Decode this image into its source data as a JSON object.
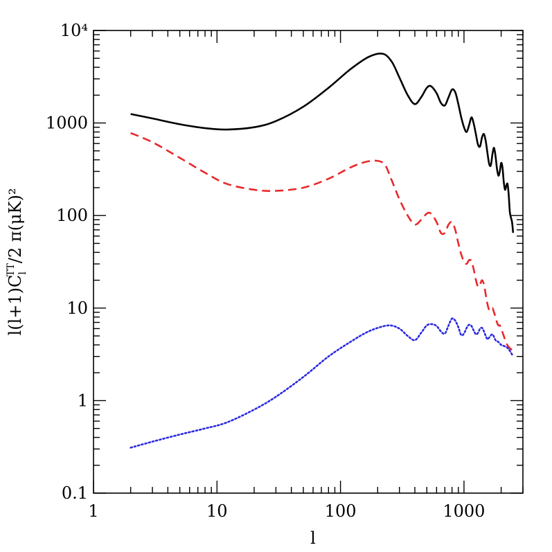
{
  "chart_data": {
    "type": "line",
    "title": "",
    "xlabel": "l",
    "ylabel": "l(l+1)C_l^TT/2 π(μK)²",
    "ylabel_parts": {
      "main": "l(l+1)C",
      "sub": "l",
      "sup": "TT",
      "tail": "/2 π(μK)²"
    },
    "xscale": "log",
    "yscale": "log",
    "xlim": [
      1,
      3000
    ],
    "ylim": [
      0.1,
      10000
    ],
    "xticks": [
      {
        "value": 1,
        "label": "1"
      },
      {
        "value": 10,
        "label": "10"
      },
      {
        "value": 100,
        "label": "100"
      },
      {
        "value": 1000,
        "label": "1000"
      }
    ],
    "yticks": [
      {
        "value": 0.1,
        "label": "0.1"
      },
      {
        "value": 1,
        "label": "1"
      },
      {
        "value": 10,
        "label": "10"
      },
      {
        "value": 100,
        "label": "100"
      },
      {
        "value": 1000,
        "label": "1000"
      },
      {
        "value": 10000,
        "label": "10⁴"
      }
    ],
    "grid": false,
    "legend": "none",
    "series": [
      {
        "style": "solid",
        "color": "#000000",
        "x": [
          2,
          3,
          5,
          8,
          12,
          20,
          30,
          50,
          80,
          120,
          170,
          220,
          260,
          300,
          350,
          400,
          450,
          500,
          540,
          600,
          650,
          700,
          750,
          800,
          850,
          900,
          950,
          1000,
          1050,
          1100,
          1150,
          1200,
          1250,
          1300,
          1350,
          1400,
          1450,
          1500,
          1550,
          1600,
          1650,
          1700,
          1750,
          1800,
          1850,
          1900,
          1950,
          2000,
          2050,
          2100,
          2150,
          2200,
          2250,
          2300,
          2350,
          2400,
          2450,
          2500
        ],
        "y": [
          1250,
          1120,
          970,
          880,
          850,
          900,
          1050,
          1500,
          2400,
          3800,
          5200,
          5600,
          4600,
          3100,
          2000,
          1600,
          1900,
          2400,
          2500,
          2100,
          1650,
          1550,
          1900,
          2300,
          2150,
          1600,
          1150,
          900,
          800,
          950,
          1150,
          980,
          750,
          580,
          560,
          700,
          760,
          640,
          470,
          360,
          350,
          460,
          540,
          440,
          320,
          270,
          300,
          370,
          330,
          230,
          190,
          210,
          220,
          170,
          110,
          95,
          85,
          65
        ]
      },
      {
        "style": "dashed",
        "color": "#e8282b",
        "x": [
          2,
          3,
          5,
          8,
          12,
          20,
          30,
          50,
          80,
          120,
          160,
          200,
          230,
          260,
          300,
          350,
          400,
          450,
          500,
          540,
          600,
          650,
          700,
          750,
          800,
          850,
          900,
          950,
          1000,
          1050,
          1100,
          1150,
          1200,
          1250,
          1300,
          1350,
          1400,
          1450,
          1500,
          1550,
          1600,
          1650,
          1700,
          1750,
          1800,
          1850,
          1900,
          1950,
          2000,
          2100,
          2200,
          2300,
          2400,
          2500
        ],
        "y": [
          780,
          620,
          420,
          290,
          220,
          190,
          185,
          200,
          250,
          330,
          380,
          390,
          350,
          240,
          150,
          100,
          80,
          90,
          105,
          105,
          85,
          65,
          65,
          80,
          85,
          70,
          50,
          38,
          32,
          30,
          33,
          32,
          26,
          20,
          17,
          18,
          20,
          18,
          14,
          11,
          9.5,
          9.5,
          10,
          9,
          8,
          7,
          6.5,
          6.5,
          6,
          5,
          4.2,
          3.8,
          3.6,
          3.5
        ]
      },
      {
        "style": "dotted",
        "color": "#2a2ae0",
        "x": [
          2,
          3,
          5,
          8,
          12,
          20,
          30,
          50,
          80,
          120,
          160,
          200,
          250,
          300,
          350,
          400,
          450,
          500,
          550,
          600,
          650,
          700,
          750,
          800,
          850,
          900,
          950,
          1000,
          1050,
          1100,
          1150,
          1200,
          1250,
          1300,
          1350,
          1400,
          1450,
          1500,
          1550,
          1600,
          1700,
          1800,
          1900,
          2000,
          2100,
          2200,
          2300,
          2400,
          2500
        ],
        "y": [
          0.31,
          0.36,
          0.43,
          0.5,
          0.58,
          0.8,
          1.1,
          1.8,
          3.0,
          4.3,
          5.4,
          6.1,
          6.5,
          6.0,
          5.0,
          4.5,
          5.4,
          6.5,
          6.7,
          6.4,
          5.6,
          5.3,
          6.5,
          7.7,
          7.3,
          6.2,
          5.1,
          5.3,
          6.1,
          6.6,
          6.4,
          5.7,
          5.2,
          5.4,
          6.0,
          6.1,
          5.6,
          5.0,
          4.6,
          4.8,
          5.2,
          4.5,
          4.3,
          4.0,
          3.9,
          3.8,
          3.6,
          3.3,
          3.0
        ]
      }
    ]
  }
}
